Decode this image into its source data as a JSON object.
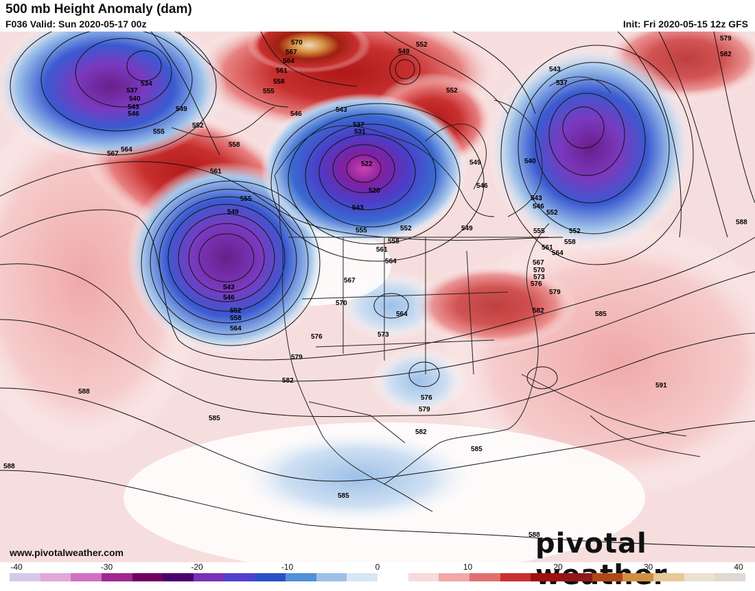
{
  "header": {
    "title": "500 mb Height Anomaly (dam)",
    "valid": "F036 Valid: Sun 2020-05-17 00z",
    "init": "Init: Fri 2020-05-15 12z GFS"
  },
  "footer": {
    "website": "www.pivotalweather.com",
    "brand": "pivotal weather"
  },
  "colorbar": {
    "ticks": [
      "-40",
      "-30",
      "-20",
      "-10",
      "0",
      "10",
      "20",
      "30",
      "40"
    ],
    "colors": [
      "#d8c8e8",
      "#e0a8d8",
      "#d070c0",
      "#a02890",
      "#700060",
      "#4a0070",
      "#7a30b8",
      "#5040d0",
      "#2a50c8",
      "#5090d8",
      "#9cc0e8",
      "#d8e6f4",
      "#ffffff",
      "#f8dada",
      "#f0a8a8",
      "#e07070",
      "#c83030",
      "#a01010",
      "#901818",
      "#b04818",
      "#d09040",
      "#e8c898",
      "#ece0d0",
      "#e0d8d4"
    ]
  },
  "contour_labels": [
    "534",
    "537",
    "540",
    "543",
    "546",
    "549",
    "552",
    "555",
    "558",
    "561",
    "564",
    "567",
    "570",
    "573",
    "576",
    "579",
    "582",
    "585",
    "588",
    "591",
    "528",
    "531"
  ],
  "map_labels": [
    {
      "text": "570"
    },
    {
      "text": "567"
    },
    {
      "text": "564"
    },
    {
      "text": "561"
    },
    {
      "text": "558"
    },
    {
      "text": "555"
    },
    {
      "text": "549"
    },
    {
      "text": "552"
    },
    {
      "text": "534"
    },
    {
      "text": "537"
    },
    {
      "text": "540"
    },
    {
      "text": "543"
    },
    {
      "text": "546"
    },
    {
      "text": "549"
    },
    {
      "text": "552"
    },
    {
      "text": "555"
    },
    {
      "text": "558"
    },
    {
      "text": "561"
    },
    {
      "text": "564"
    },
    {
      "text": "567"
    },
    {
      "text": "546"
    },
    {
      "text": "543"
    },
    {
      "text": "537"
    },
    {
      "text": "531"
    },
    {
      "text": "522"
    },
    {
      "text": "528"
    },
    {
      "text": "543"
    },
    {
      "text": "549"
    },
    {
      "text": "552"
    },
    {
      "text": "546"
    },
    {
      "text": "549"
    },
    {
      "text": "552"
    },
    {
      "text": "543"
    },
    {
      "text": "537"
    },
    {
      "text": "540"
    },
    {
      "text": "543"
    },
    {
      "text": "546"
    },
    {
      "text": "552"
    },
    {
      "text": "555"
    },
    {
      "text": "558"
    },
    {
      "text": "561"
    },
    {
      "text": "564"
    },
    {
      "text": "567"
    },
    {
      "text": "570"
    },
    {
      "text": "573"
    },
    {
      "text": "576"
    },
    {
      "text": "579"
    },
    {
      "text": "582"
    },
    {
      "text": "585"
    },
    {
      "text": "588"
    },
    {
      "text": "579"
    },
    {
      "text": "582"
    },
    {
      "text": "543"
    },
    {
      "text": "546"
    },
    {
      "text": "552"
    },
    {
      "text": "558"
    },
    {
      "text": "564"
    },
    {
      "text": "549"
    },
    {
      "text": "555"
    },
    {
      "text": "558"
    },
    {
      "text": "561"
    },
    {
      "text": "564"
    },
    {
      "text": "567"
    },
    {
      "text": "570"
    },
    {
      "text": "564"
    },
    {
      "text": "573"
    },
    {
      "text": "576"
    },
    {
      "text": "579"
    },
    {
      "text": "582"
    },
    {
      "text": "576"
    },
    {
      "text": "579"
    },
    {
      "text": "582"
    },
    {
      "text": "585"
    },
    {
      "text": "588"
    },
    {
      "text": "585"
    },
    {
      "text": "588"
    },
    {
      "text": "591"
    },
    {
      "text": "585"
    },
    {
      "text": "588"
    },
    {
      "text": "552"
    },
    {
      "text": "555"
    }
  ]
}
